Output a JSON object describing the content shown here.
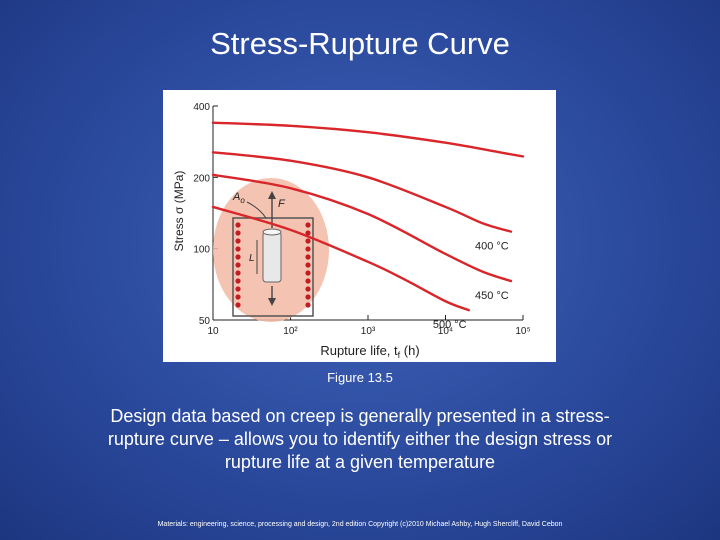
{
  "slide": {
    "title": "Stress-Rupture Curve",
    "caption": "Figure 13.5",
    "body": "Design data based on creep is generally presented in a stress-rupture curve – allows you to identify either the design stress or rupture life at a given temperature",
    "copyright": "Materials: engineering, science, processing and design, 2nd edition Copyright (c)2010 Michael Ashby, Hugh Shercliff, David Cebon"
  },
  "colors": {
    "background": "#2b4a9e",
    "curve": "#d8262b",
    "furnace_glow": "#f2b8a3",
    "specimen": "#e8e8e8"
  },
  "chart_data": {
    "type": "line",
    "xscale": "log",
    "yscale": "log",
    "xlim": [
      10,
      100000
    ],
    "ylim": [
      50,
      400
    ],
    "xticks": [
      10,
      100,
      1000,
      10000,
      100000
    ],
    "xtick_labels": [
      "10",
      "10²",
      "10³",
      "10⁴",
      "10⁵"
    ],
    "yticks": [
      50,
      100,
      200,
      400
    ],
    "ytick_labels": [
      "50",
      "100",
      "200",
      "400"
    ],
    "xlabel": "Rupture life, t",
    "xlabel_sub": "f",
    "xlabel_unit": " (h)",
    "ylabel": "Stress σ (MPa)",
    "grid": false,
    "series": [
      {
        "name": "",
        "x": [
          10,
          100,
          1000,
          10000,
          50000,
          100000
        ],
        "y": [
          340,
          330,
          310,
          280,
          255,
          245
        ]
      },
      {
        "name": "400 °C",
        "x": [
          10,
          100,
          1000,
          10000,
          30000,
          70000
        ],
        "y": [
          255,
          235,
          200,
          150,
          128,
          118
        ]
      },
      {
        "name": "450 °C",
        "x": [
          10,
          100,
          1000,
          10000,
          30000,
          70000
        ],
        "y": [
          205,
          180,
          140,
          95,
          80,
          73
        ]
      },
      {
        "name": "500 °C",
        "x": [
          10,
          100,
          1000,
          3000,
          10000,
          20000
        ],
        "y": [
          150,
          120,
          88,
          74,
          60,
          55
        ]
      }
    ],
    "inset": {
      "labels": [
        "A",
        "o",
        "F",
        "L"
      ]
    }
  }
}
